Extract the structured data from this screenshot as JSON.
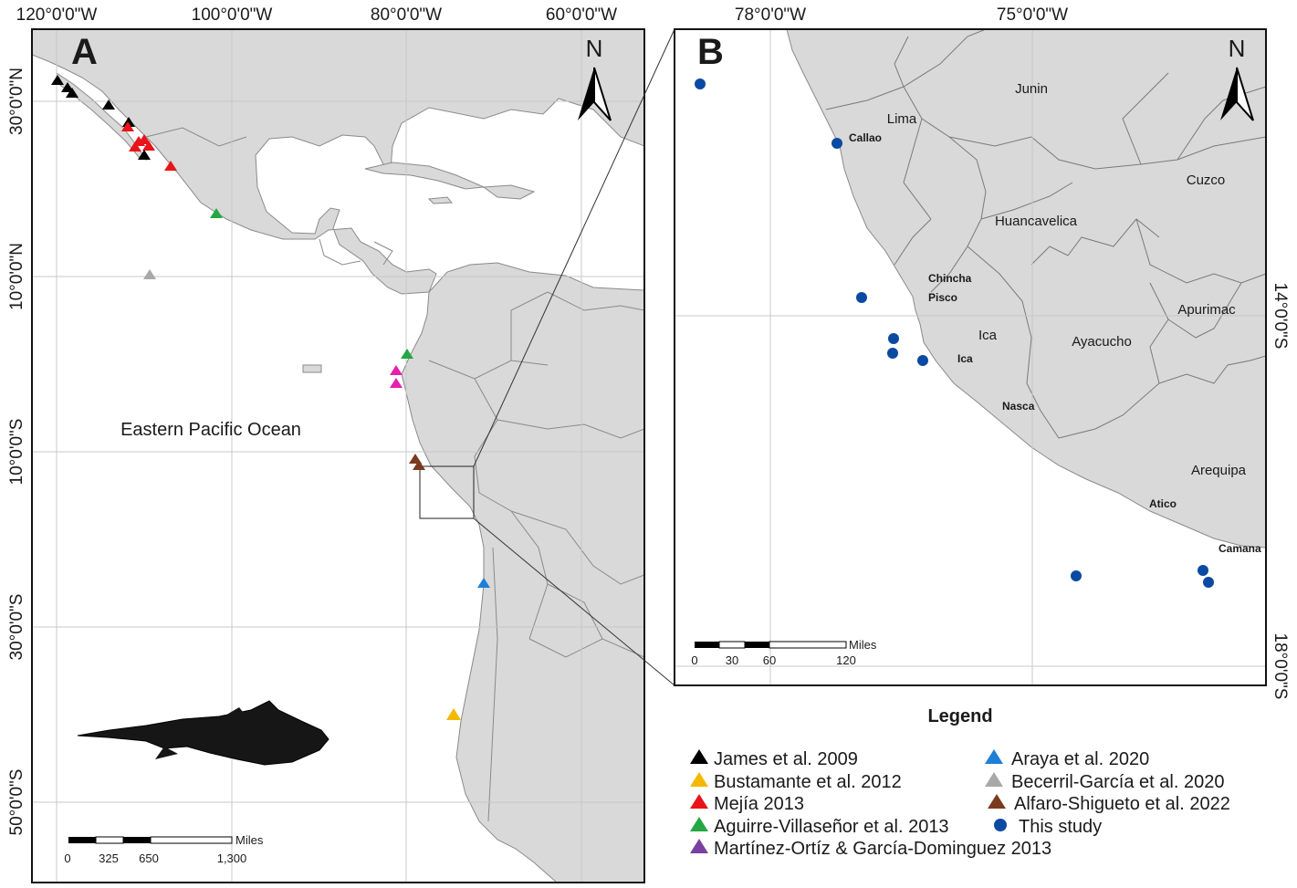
{
  "panel_a": {
    "letter": "A",
    "north_label": "N",
    "ocean_label": "Eastern Pacific Ocean",
    "top_ticks": [
      "120°0'0\"W",
      "100°0'0\"W",
      "80°0'0\"W",
      "60°0'0\"W"
    ],
    "left_ticks": [
      "30°0'0\"N",
      "10°0'0\"N",
      "10°0'0\"S",
      "30°0'0\"S",
      "50°0'0\"S"
    ],
    "scale": {
      "unit": "Miles",
      "ticks": [
        "0",
        "325",
        "650",
        "1,300"
      ]
    }
  },
  "panel_b": {
    "letter": "B",
    "north_label": "N",
    "top_ticks": [
      "78°0'0\"W",
      "75°0'0\"W"
    ],
    "right_ticks": [
      "14°0'0\"S",
      "18°0'0\"S"
    ],
    "regions": [
      "Junin",
      "Lima",
      "Cuzco",
      "Huancavelica",
      "Apurimac",
      "Ica",
      "Ayacucho",
      "Arequipa"
    ],
    "towns": [
      "Callao",
      "Chincha",
      "Pisco",
      "Ica",
      "Nasca",
      "Atico",
      "Camana"
    ],
    "scale": {
      "unit": "Miles",
      "ticks": [
        "0",
        "30",
        "60",
        "120"
      ]
    }
  },
  "legend": {
    "title": "Legend",
    "items": [
      {
        "label": "James et al. 2009",
        "color": "#000000",
        "shape": "triangle"
      },
      {
        "label": "Bustamante et al. 2012",
        "color": "#f5b800",
        "shape": "triangle"
      },
      {
        "label": "Mejía 2013",
        "color": "#e8141a",
        "shape": "triangle"
      },
      {
        "label": "Aguirre-Villaseñor et al. 2013",
        "color": "#25a744",
        "shape": "triangle"
      },
      {
        "label": "Martínez-Ortíz & García-Dominguez 2013",
        "color": "#7a3fa0",
        "shape": "triangle"
      },
      {
        "label": "Araya et al. 2020",
        "color": "#1d7fd6",
        "shape": "triangle"
      },
      {
        "label": "Becerril-García et al. 2020",
        "color": "#a8a8a8",
        "shape": "triangle"
      },
      {
        "label": "Alfaro-Shigueto et al. 2022",
        "color": "#7a3a1e",
        "shape": "triangle"
      },
      {
        "label": "This study",
        "color": "#0b4aa2",
        "shape": "circle"
      }
    ]
  },
  "colors": {
    "land": "#d9d9d9",
    "sea": "#ffffff",
    "border": "#7a7a7a",
    "graticule": "#c8c8c8",
    "frame": "#111111",
    "pink_markers": "#e61fb0"
  }
}
